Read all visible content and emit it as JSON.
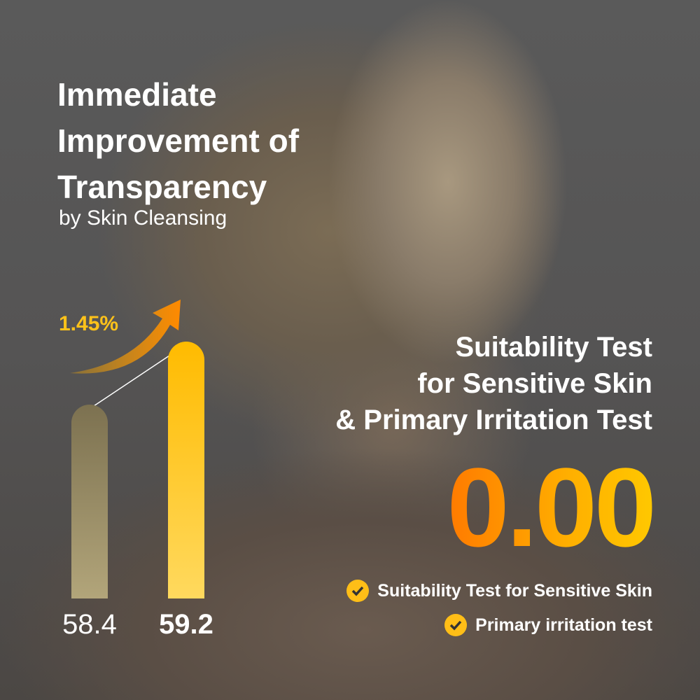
{
  "headline": {
    "lines": [
      "Immediate",
      "Improvement of",
      "Transparency"
    ],
    "subtitle": "by Skin Cleansing"
  },
  "chart_data": {
    "type": "bar",
    "categories": [
      "",
      ""
    ],
    "values": [
      58.4,
      59.2
    ],
    "value_labels": [
      "58.4",
      "59.2"
    ],
    "annotation": "1.45%",
    "colors": [
      "#9a8e66",
      "#ffc21a"
    ]
  },
  "right": {
    "lines": [
      "Suitability Test",
      "for Sensitive Skin",
      "& Primary Irritation Test"
    ],
    "score": "0.00",
    "checks": [
      {
        "label": "Suitability Test for Sensitive Skin",
        "icon": "check-circle-icon"
      },
      {
        "label": "Primary irritation test",
        "icon": "check-circle-icon"
      }
    ]
  },
  "colors": {
    "accent": "#ffc21a",
    "score_orange": "#ff7a00"
  }
}
